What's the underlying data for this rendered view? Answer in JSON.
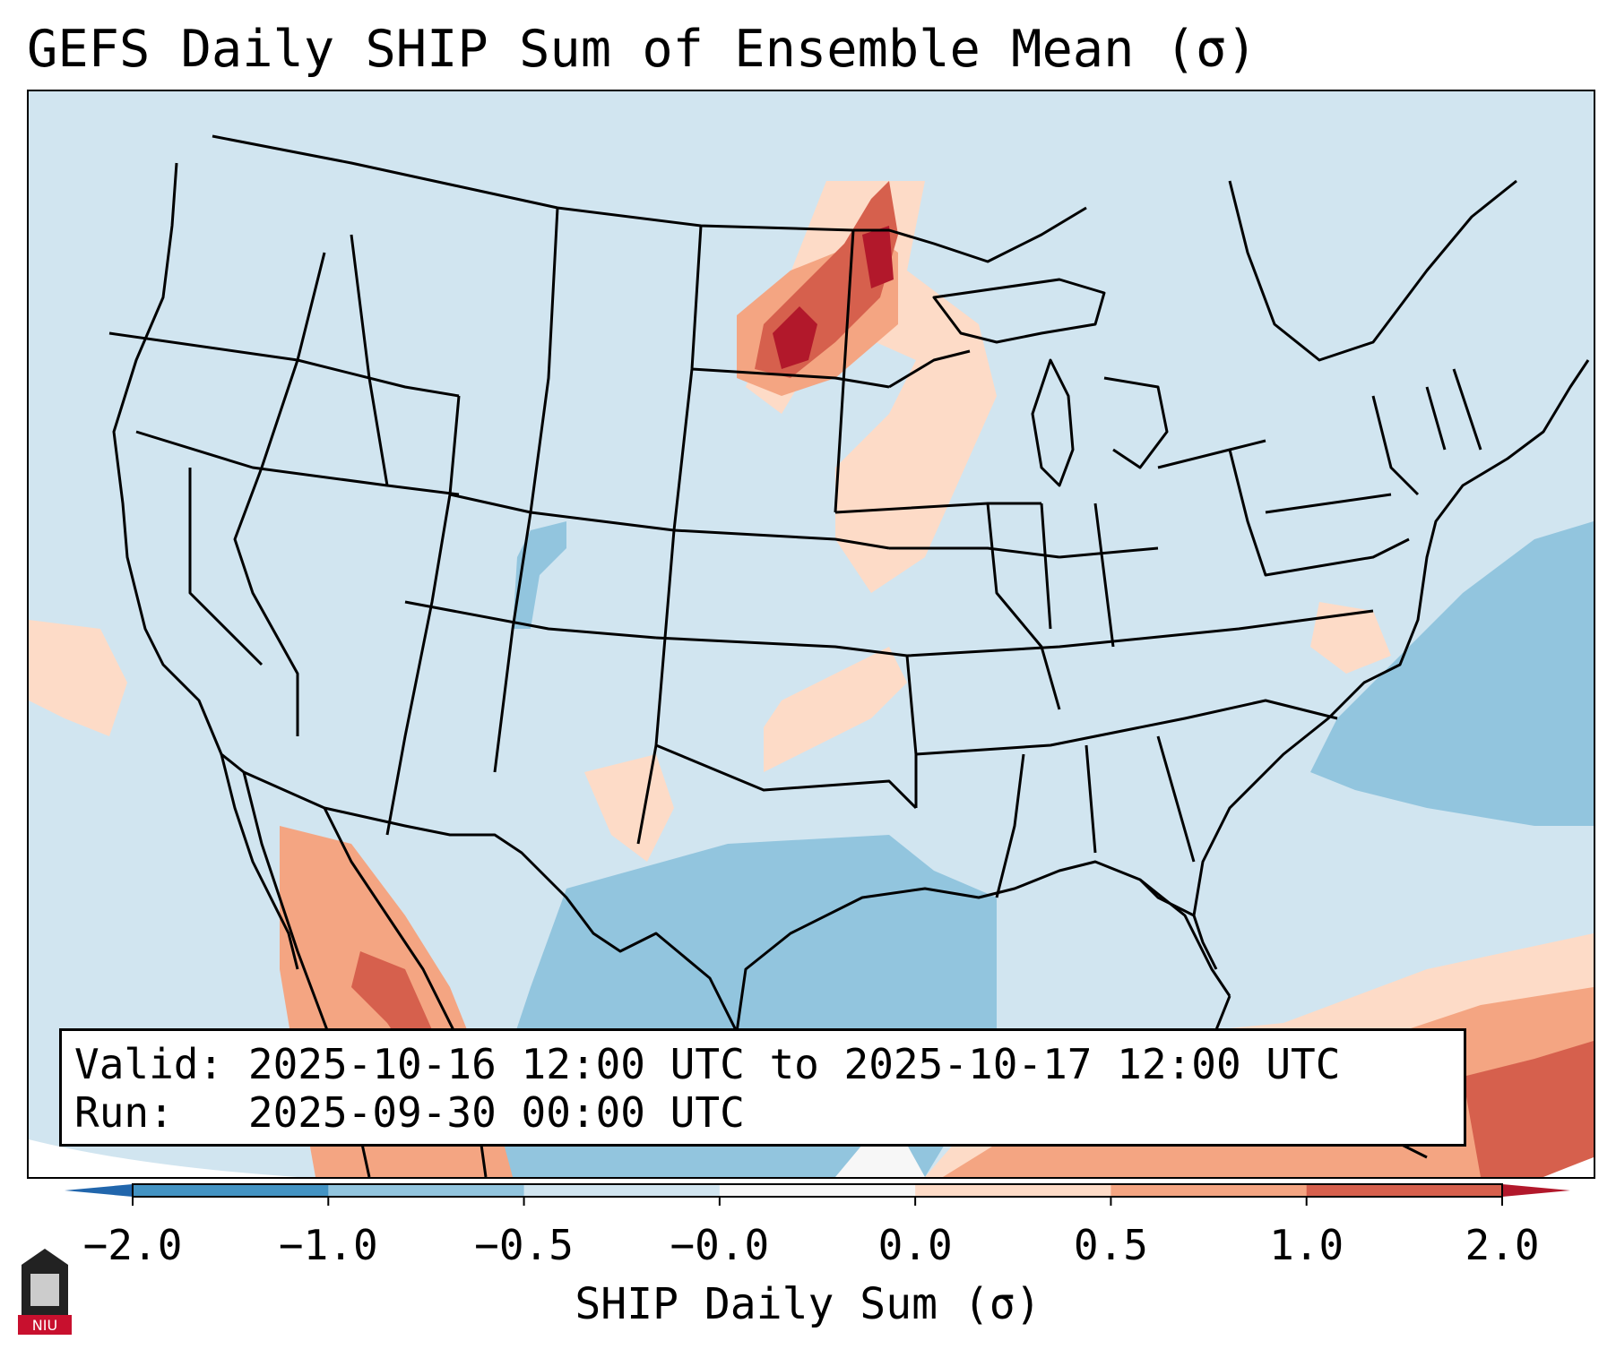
{
  "title": "GEFS Daily SHIP Sum of Ensemble Mean (σ)",
  "info": {
    "valid_label": "Valid:",
    "valid_value": "2025-10-16 12:00 UTC to 2025-10-17 12:00 UTC",
    "run_label": "Run:",
    "run_value": "2025-09-30 00:00 UTC"
  },
  "colorbar": {
    "label": "SHIP Daily Sum (σ)",
    "ticks": [
      "−2.0",
      "−1.0",
      "−0.5",
      "−0.0",
      "0.0",
      "0.5",
      "1.0",
      "2.0"
    ],
    "bins": [
      {
        "color": "#4393c3"
      },
      {
        "color": "#92c5de"
      },
      {
        "color": "#d1e5f0"
      },
      {
        "color": "#f7f7f7"
      },
      {
        "color": "#fddbc7"
      },
      {
        "color": "#f4a582"
      },
      {
        "color": "#d6604d"
      }
    ],
    "under_color": "#2166ac",
    "over_color": "#b2182b"
  },
  "colors": {
    "background": "#d1e5f0",
    "neg_strong": "#4393c3",
    "neg_mid": "#92c5de",
    "pos_light": "#fddbc7",
    "pos_mid": "#f4a582",
    "pos_strong": "#d6604d",
    "pos_max": "#b2182b",
    "neutral": "#f7f7f7",
    "boundary": "#000000"
  },
  "logo": {
    "text": "NIU",
    "icon": "university-tower-icon"
  }
}
